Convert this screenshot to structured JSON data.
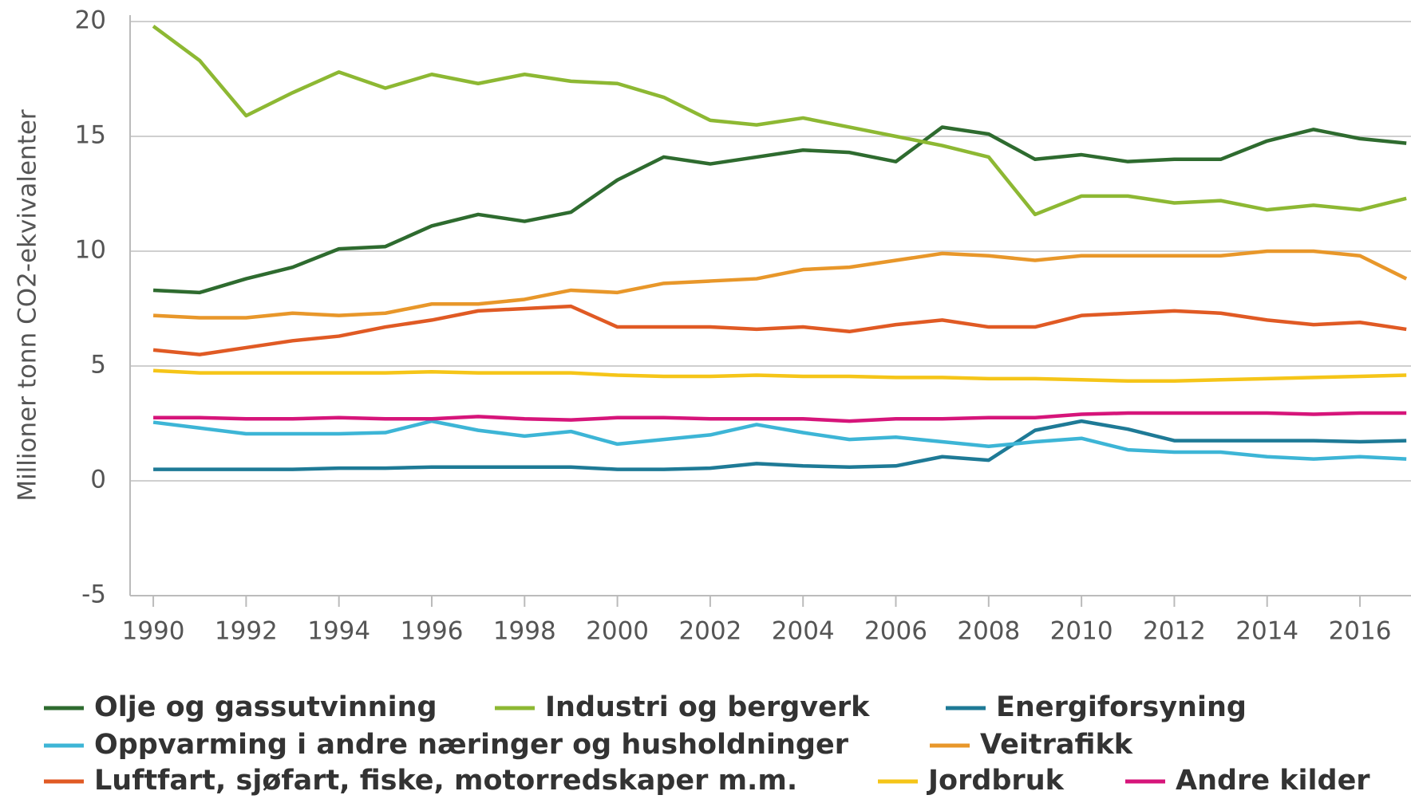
{
  "chart_data": {
    "type": "line",
    "y_label": "Millioner tonn CO2-ekvivalenter",
    "x": [
      1990,
      1991,
      1992,
      1993,
      1994,
      1995,
      1996,
      1997,
      1998,
      1999,
      2000,
      2001,
      2002,
      2003,
      2004,
      2005,
      2006,
      2007,
      2008,
      2009,
      2010,
      2011,
      2012,
      2013,
      2014,
      2015,
      2016,
      2017
    ],
    "xlim": [
      1989.5,
      2017.1
    ],
    "xticks": [
      1990,
      1992,
      1994,
      1996,
      1998,
      2000,
      2002,
      2004,
      2006,
      2008,
      2010,
      2012,
      2014,
      2016
    ],
    "ylim": [
      -5,
      20
    ],
    "yticks": [
      -5,
      0,
      5,
      10,
      15,
      20
    ],
    "grid": true,
    "legend": "bottom",
    "series": [
      {
        "name": "Olje og gassutvinning",
        "color": "#2e6b2f",
        "values": [
          8.3,
          8.2,
          8.8,
          9.3,
          10.1,
          10.2,
          11.1,
          11.6,
          11.3,
          11.7,
          13.1,
          14.1,
          13.8,
          14.1,
          14.4,
          14.3,
          13.9,
          15.4,
          15.1,
          14.0,
          14.2,
          13.9,
          14.0,
          14.0,
          14.8,
          15.3,
          14.9,
          14.7
        ]
      },
      {
        "name": "Industri og bergverk",
        "color": "#8db833",
        "values": [
          19.8,
          18.3,
          15.9,
          16.9,
          17.8,
          17.1,
          17.7,
          17.3,
          17.7,
          17.4,
          17.3,
          16.7,
          15.7,
          15.5,
          15.8,
          15.4,
          15.0,
          14.6,
          14.1,
          11.6,
          12.4,
          12.4,
          12.1,
          12.2,
          11.8,
          12.0,
          11.8,
          12.3
        ]
      },
      {
        "name": "Energiforsyning",
        "color": "#1e7a96",
        "values": [
          0.5,
          0.5,
          0.5,
          0.5,
          0.55,
          0.55,
          0.6,
          0.6,
          0.6,
          0.6,
          0.5,
          0.5,
          0.55,
          0.75,
          0.65,
          0.6,
          0.65,
          1.05,
          0.9,
          2.2,
          2.6,
          2.25,
          1.75,
          1.75,
          1.75,
          1.75,
          1.7,
          1.75
        ]
      },
      {
        "name": "Oppvarming i andre næringer og husholdninger",
        "color": "#3db5d6",
        "values": [
          2.55,
          2.3,
          2.05,
          2.05,
          2.05,
          2.1,
          2.6,
          2.2,
          1.95,
          2.15,
          1.6,
          1.8,
          2.0,
          2.45,
          2.1,
          1.8,
          1.9,
          1.7,
          1.5,
          1.7,
          1.85,
          1.35,
          1.25,
          1.25,
          1.05,
          0.95,
          1.05,
          0.95
        ]
      },
      {
        "name": "Veitrafikk",
        "color": "#e8972a",
        "values": [
          7.2,
          7.1,
          7.1,
          7.3,
          7.2,
          7.3,
          7.7,
          7.7,
          7.9,
          8.3,
          8.2,
          8.6,
          8.7,
          8.8,
          9.2,
          9.3,
          9.6,
          9.9,
          9.8,
          9.6,
          9.8,
          9.8,
          9.8,
          9.8,
          10.0,
          10.0,
          9.8,
          8.8
        ]
      },
      {
        "name": "Luftfart, sjøfart, fiske, motorredskaper m.m.",
        "color": "#e05a24",
        "values": [
          5.7,
          5.5,
          5.8,
          6.1,
          6.3,
          6.7,
          7.0,
          7.4,
          7.5,
          7.6,
          6.7,
          6.7,
          6.7,
          6.6,
          6.7,
          6.5,
          6.8,
          7.0,
          6.7,
          6.7,
          7.2,
          7.3,
          7.4,
          7.3,
          7.0,
          6.8,
          6.9,
          6.6
        ]
      },
      {
        "name": "Jordbruk",
        "color": "#f5c518",
        "values": [
          4.8,
          4.7,
          4.7,
          4.7,
          4.7,
          4.7,
          4.75,
          4.7,
          4.7,
          4.7,
          4.6,
          4.55,
          4.55,
          4.6,
          4.55,
          4.55,
          4.5,
          4.5,
          4.45,
          4.45,
          4.4,
          4.35,
          4.35,
          4.4,
          4.45,
          4.5,
          4.55,
          4.6
        ]
      },
      {
        "name": "Andre kilder",
        "color": "#d6157a",
        "values": [
          2.75,
          2.75,
          2.7,
          2.7,
          2.75,
          2.7,
          2.7,
          2.8,
          2.7,
          2.65,
          2.75,
          2.75,
          2.7,
          2.7,
          2.7,
          2.6,
          2.7,
          2.7,
          2.75,
          2.75,
          2.9,
          2.95,
          2.95,
          2.95,
          2.95,
          2.9,
          2.95,
          2.95
        ]
      }
    ]
  }
}
